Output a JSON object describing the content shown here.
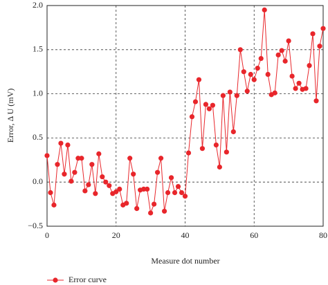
{
  "chart_data": {
    "type": "line",
    "x_label": "Measure dot number",
    "y_label": "Error, Δ U (mV)",
    "x": [
      0,
      1,
      2,
      3,
      4,
      5,
      6,
      7,
      8,
      9,
      10,
      11,
      12,
      13,
      14,
      15,
      16,
      17,
      18,
      19,
      20,
      21,
      22,
      23,
      24,
      25,
      26,
      27,
      28,
      29,
      30,
      31,
      32,
      33,
      34,
      35,
      36,
      37,
      38,
      39,
      40,
      41,
      42,
      43,
      44,
      45,
      46,
      47,
      48,
      49,
      50,
      51,
      52,
      53,
      54,
      55,
      56,
      57,
      58,
      59,
      60,
      61,
      62,
      63,
      64,
      65,
      66,
      67,
      68,
      69,
      70,
      71,
      72,
      73,
      74,
      75,
      76,
      77,
      78,
      79,
      80
    ],
    "series": [
      {
        "name": "Error curve",
        "color": "#e8262b",
        "values": [
          0.3,
          -0.12,
          -0.26,
          0.2,
          0.44,
          0.09,
          0.42,
          0.01,
          0.11,
          0.27,
          0.27,
          -0.1,
          -0.03,
          0.2,
          -0.13,
          0.32,
          0.06,
          0.0,
          -0.04,
          -0.13,
          -0.11,
          -0.08,
          -0.26,
          -0.24,
          0.27,
          0.09,
          -0.3,
          -0.09,
          -0.08,
          -0.08,
          -0.35,
          -0.25,
          0.11,
          0.27,
          -0.33,
          -0.12,
          0.05,
          -0.12,
          -0.05,
          -0.12,
          -0.16,
          0.33,
          0.74,
          0.91,
          1.16,
          0.38,
          0.88,
          0.83,
          0.87,
          0.42,
          0.17,
          0.98,
          0.34,
          1.02,
          0.57,
          0.98,
          1.5,
          1.25,
          1.03,
          1.22,
          1.16,
          1.29,
          1.4,
          1.95,
          1.22,
          0.99,
          1.01,
          1.44,
          1.49,
          1.37,
          1.6,
          1.2,
          1.06,
          1.12,
          1.05,
          1.06,
          1.32,
          1.68,
          0.92,
          1.54,
          1.74
        ]
      }
    ],
    "xlim": [
      0,
      80
    ],
    "xticks": [
      0,
      20,
      40,
      60,
      80
    ],
    "ylim": [
      -0.5,
      2.0
    ],
    "yticks": [
      {
        "value": -0.5,
        "label": "−0.5"
      },
      {
        "value": 0,
        "label": "0.0"
      },
      {
        "value": 0.5,
        "label": "0.5"
      },
      {
        "value": 1,
        "label": "1.0"
      },
      {
        "value": 1.5,
        "label": "1.5"
      },
      {
        "value": 2,
        "label": "2.0"
      }
    ],
    "grid": true,
    "legend": "bottom-left"
  }
}
